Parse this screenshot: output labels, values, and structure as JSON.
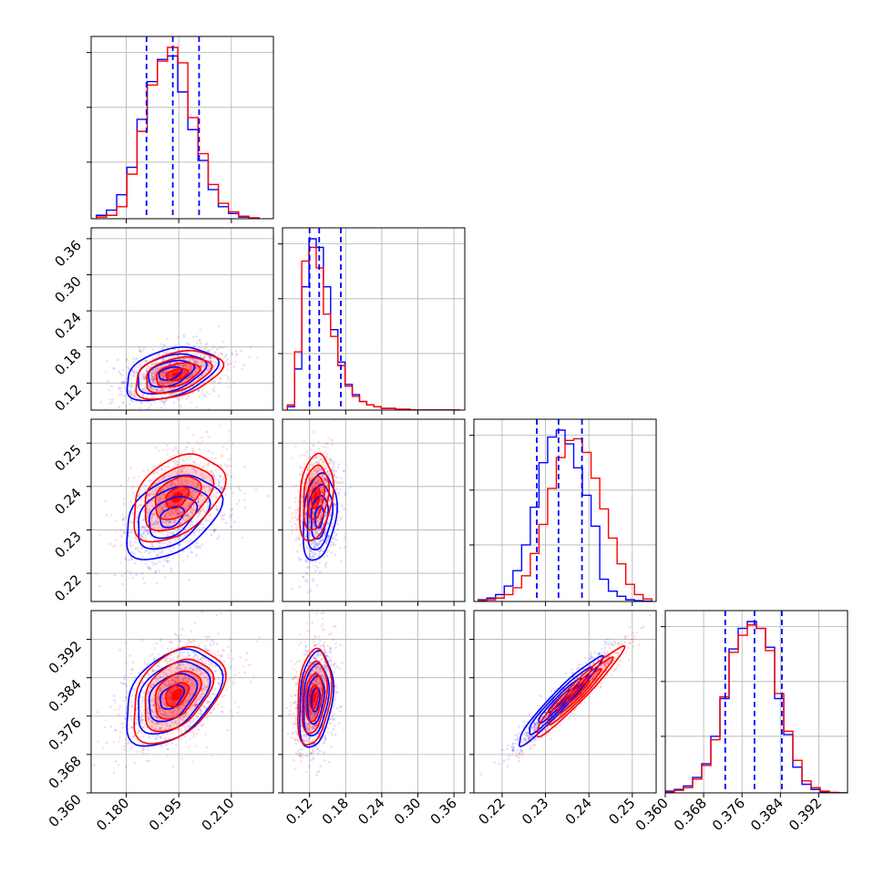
{
  "chart_data": {
    "type": "corner",
    "parameters": 4,
    "grid": true,
    "series": [
      {
        "name": "",
        "color": "#0000ff"
      },
      {
        "name": "",
        "color": "#ff0000"
      }
    ],
    "quantile_line_color": "#0000ff",
    "axes": [
      {
        "range": [
          0.17,
          0.222
        ],
        "ticks": [
          0.18,
          0.195,
          0.21
        ],
        "tick_labels": [
          "0.180",
          "0.195",
          "0.210"
        ]
      },
      {
        "range": [
          0.075,
          0.378
        ],
        "ticks": [
          0.12,
          0.18,
          0.24,
          0.3,
          0.36
        ],
        "tick_labels": [
          "0.12",
          "0.18",
          "0.24",
          "0.30",
          "0.36"
        ]
      },
      {
        "range": [
          0.2135,
          0.2555
        ],
        "ticks": [
          0.22,
          0.23,
          0.24,
          0.25
        ],
        "tick_labels": [
          "0.22",
          "0.23",
          "0.24",
          "0.25"
        ]
      },
      {
        "range": [
          0.36,
          0.398
        ],
        "ticks": [
          0.36,
          0.368,
          0.376,
          0.384,
          0.392
        ],
        "tick_labels": [
          "0.360",
          "0.368",
          "0.376",
          "0.384",
          "0.392"
        ]
      }
    ],
    "diag_histograms": [
      {
        "quantiles": [
          0.1858,
          0.1933,
          0.2008
        ],
        "bin_edges": [
          0.1715,
          0.1744,
          0.1773,
          0.1802,
          0.1831,
          0.186,
          0.1889,
          0.1918,
          0.1947,
          0.1976,
          0.2005,
          0.2034,
          0.2063,
          0.2092,
          0.2121,
          0.215,
          0.2179
        ],
        "counts_blue": [
          0.02,
          0.05,
          0.14,
          0.3,
          0.58,
          0.8,
          0.93,
          0.95,
          0.74,
          0.52,
          0.34,
          0.17,
          0.07,
          0.03,
          0.01,
          0.005
        ],
        "counts_red": [
          0.01,
          0.02,
          0.07,
          0.26,
          0.51,
          0.78,
          0.92,
          1.0,
          0.91,
          0.59,
          0.38,
          0.2,
          0.09,
          0.04,
          0.015,
          0.005
        ],
        "y_ticks": [
          0.33,
          0.65,
          0.97
        ]
      },
      {
        "quantiles": [
          0.12,
          0.136,
          0.172
        ],
        "bin_edges": [
          0.083,
          0.095,
          0.107,
          0.119,
          0.131,
          0.143,
          0.155,
          0.167,
          0.179,
          0.191,
          0.203,
          0.215,
          0.227,
          0.239,
          0.251,
          0.263,
          0.275,
          0.287,
          0.299,
          0.311,
          0.323,
          0.335,
          0.347,
          0.359,
          0.371
        ],
        "counts_blue": [
          0.02,
          0.24,
          0.72,
          1.0,
          0.95,
          0.72,
          0.47,
          0.28,
          0.15,
          0.09,
          0.05,
          0.03,
          0.02,
          0.01,
          0.01,
          0.005,
          0.005,
          0,
          0,
          0,
          0,
          0,
          0,
          0
        ],
        "counts_red": [
          0.03,
          0.34,
          0.87,
          0.95,
          0.83,
          0.56,
          0.43,
          0.26,
          0.14,
          0.08,
          0.05,
          0.03,
          0.02,
          0.01,
          0.01,
          0.005,
          0.005,
          0,
          0,
          0,
          0,
          0,
          0,
          0
        ],
        "y_ticks": [
          0.33,
          0.65,
          0.97
        ]
      },
      {
        "quantiles": [
          0.228,
          0.233,
          0.2384
        ],
        "bin_edges": [
          0.2145,
          0.2165,
          0.2185,
          0.2205,
          0.2225,
          0.2245,
          0.2265,
          0.2285,
          0.2305,
          0.2325,
          0.2345,
          0.2365,
          0.2385,
          0.2405,
          0.2425,
          0.2445,
          0.2465,
          0.2485,
          0.2505,
          0.2525,
          0.2545
        ],
        "counts_blue": [
          0.01,
          0.02,
          0.04,
          0.09,
          0.18,
          0.33,
          0.55,
          0.81,
          0.96,
          1.0,
          0.92,
          0.78,
          0.62,
          0.44,
          0.13,
          0.06,
          0.03,
          0.01,
          0.005,
          0.002
        ],
        "counts_red": [
          0.005,
          0.01,
          0.02,
          0.04,
          0.08,
          0.15,
          0.28,
          0.45,
          0.66,
          0.84,
          0.94,
          0.95,
          0.87,
          0.72,
          0.54,
          0.37,
          0.22,
          0.1,
          0.04,
          0.015
        ],
        "y_ticks": [
          0.33,
          0.65,
          0.97
        ]
      },
      {
        "quantiles": [
          0.3725,
          0.3786,
          0.3843
        ],
        "bin_edges": [
          0.36,
          0.3619,
          0.3638,
          0.3657,
          0.3676,
          0.3695,
          0.3714,
          0.3733,
          0.3752,
          0.3771,
          0.379,
          0.3809,
          0.3828,
          0.3847,
          0.3866,
          0.3885,
          0.3904,
          0.3923,
          0.3942,
          0.3961,
          0.398
        ],
        "counts_blue": [
          0.01,
          0.02,
          0.04,
          0.09,
          0.17,
          0.33,
          0.55,
          0.84,
          0.96,
          1.0,
          0.96,
          0.85,
          0.55,
          0.34,
          0.15,
          0.05,
          0.02,
          0.005,
          0,
          0
        ],
        "counts_red": [
          0.005,
          0.015,
          0.03,
          0.08,
          0.16,
          0.31,
          0.56,
          0.82,
          0.92,
          0.98,
          0.96,
          0.83,
          0.58,
          0.36,
          0.19,
          0.07,
          0.03,
          0.01,
          0.003,
          0
        ],
        "y_ticks": [
          0.33,
          0.65,
          0.97
        ]
      }
    ],
    "pair_contours": [
      {
        "x": 0,
        "y": 1,
        "blue": {
          "mean": [
            0.1925,
            0.136
          ],
          "sd": [
            0.0065,
            0.022
          ],
          "rho": 0.4
        },
        "red": {
          "mean": [
            0.1945,
            0.134
          ],
          "sd": [
            0.0062,
            0.02
          ],
          "rho": 0.4
        }
      },
      {
        "x": 0,
        "y": 2,
        "blue": {
          "mean": [
            0.193,
            0.233
          ],
          "sd": [
            0.0068,
            0.0048
          ],
          "rho": 0.4
        },
        "red": {
          "mean": [
            0.1945,
            0.2375
          ],
          "sd": [
            0.0065,
            0.005
          ],
          "rho": 0.4
        }
      },
      {
        "x": 1,
        "y": 2,
        "blue": {
          "mean": [
            0.136,
            0.233
          ],
          "sd": [
            0.014,
            0.005
          ],
          "rho": 0.25
        },
        "red": {
          "mean": [
            0.13,
            0.2375
          ],
          "sd": [
            0.014,
            0.005
          ],
          "rho": 0.25
        }
      },
      {
        "x": 0,
        "y": 3,
        "blue": {
          "mean": [
            0.193,
            0.38
          ],
          "sd": [
            0.0068,
            0.005
          ],
          "rho": 0.4
        },
        "red": {
          "mean": [
            0.1945,
            0.3805
          ],
          "sd": [
            0.0065,
            0.005
          ],
          "rho": 0.4
        }
      },
      {
        "x": 1,
        "y": 3,
        "blue": {
          "mean": [
            0.13,
            0.3795
          ],
          "sd": [
            0.014,
            0.005
          ],
          "rho": 0.25
        },
        "red": {
          "mean": [
            0.127,
            0.38
          ],
          "sd": [
            0.014,
            0.005
          ],
          "rho": 0.25
        }
      },
      {
        "x": 2,
        "y": 3,
        "blue": {
          "mean": [
            0.233,
            0.379
          ],
          "sd": [
            0.0048,
            0.0046
          ],
          "rho": 0.96
        },
        "red": {
          "mean": [
            0.2375,
            0.381
          ],
          "sd": [
            0.005,
            0.0046
          ],
          "rho": 0.96
        }
      }
    ],
    "contour_levels_sigma": [
      0.5,
      1.0,
      1.5,
      2.0
    ]
  }
}
